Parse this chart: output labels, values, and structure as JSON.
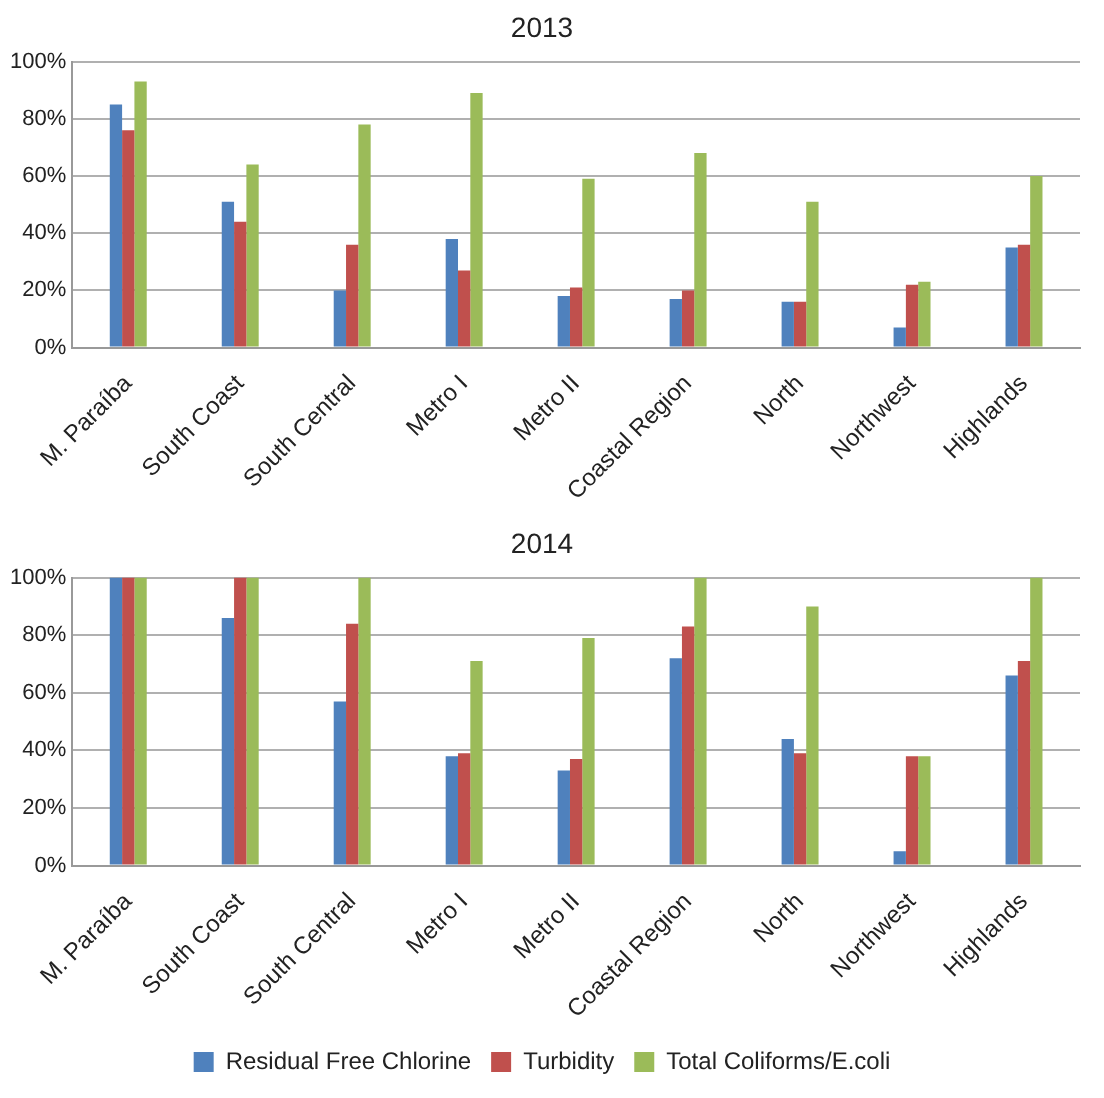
{
  "chart_data": [
    {
      "type": "bar",
      "title": "2013",
      "categories": [
        "M. Paraíba",
        "South Coast",
        "South Central",
        "Metro I",
        "Metro II",
        "Coastal Region",
        "North",
        "Northwest",
        "Highlands"
      ],
      "series": [
        {
          "color": "#4f81bd",
          "values": [
            85,
            51,
            20,
            38,
            18,
            17,
            16,
            7,
            35
          ]
        },
        {
          "color": "#c0504d",
          "values": [
            76,
            44,
            36,
            27,
            21,
            20,
            16,
            22,
            36
          ]
        },
        {
          "color": "#9bbb59",
          "values": [
            93,
            64,
            78,
            89,
            59,
            68,
            51,
            23,
            60
          ]
        }
      ],
      "ylim": [
        0,
        100
      ],
      "yticks": [
        {
          "value": 0,
          "label": "0%"
        },
        {
          "value": 20,
          "label": "20%"
        },
        {
          "value": 40,
          "label": "40%"
        },
        {
          "value": 60,
          "label": "60%"
        },
        {
          "value": 80,
          "label": "80%"
        },
        {
          "value": 100,
          "label": "100%"
        }
      ],
      "grid": "y",
      "legend": false
    },
    {
      "type": "bar",
      "title": "2014",
      "categories": [
        "M. Paraíba",
        "South Coast",
        "South Central",
        "Metro I",
        "Metro II",
        "Coastal Region",
        "North",
        "Northwest",
        "Highlands"
      ],
      "series": [
        {
          "name": "Residual Free Chlorine",
          "color": "#4f81bd",
          "values": [
            100,
            86,
            57,
            38,
            33,
            72,
            44,
            5,
            66
          ]
        },
        {
          "name": "Turbidity",
          "color": "#c0504d",
          "values": [
            100,
            100,
            84,
            39,
            37,
            83,
            39,
            38,
            71
          ]
        },
        {
          "name": "Total Coliforms/E.coli",
          "color": "#9bbb59",
          "values": [
            100,
            100,
            100,
            71,
            79,
            100,
            90,
            38,
            100
          ]
        }
      ],
      "ylim": [
        0,
        100
      ],
      "yticks": [
        {
          "value": 0,
          "label": "0%"
        },
        {
          "value": 20,
          "label": "20%"
        },
        {
          "value": 40,
          "label": "40%"
        },
        {
          "value": 60,
          "label": "60%"
        },
        {
          "value": 80,
          "label": "80%"
        },
        {
          "value": 100,
          "label": "100%"
        }
      ],
      "grid": "y",
      "legend": "bottom"
    }
  ]
}
